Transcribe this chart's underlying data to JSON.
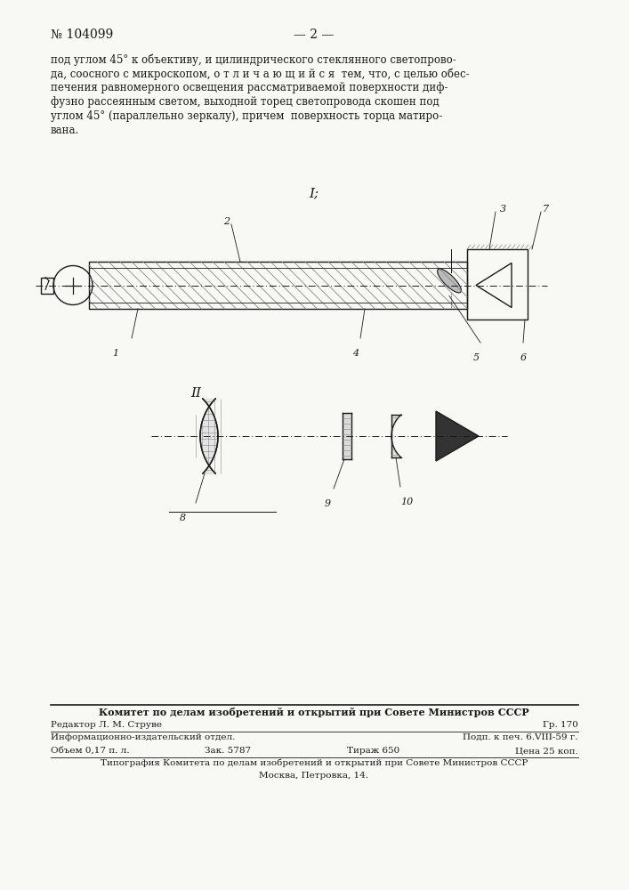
{
  "bg_color": "#f8f8f4",
  "patent_number": "№ 104099",
  "page_number": "— 2 —",
  "fig1_label": "I;",
  "fig2_label": "II",
  "body_lines": [
    "под углом 45° к объективу, и цилиндрического стеклянного светопрово-",
    "да, соосного с микроскопом, о т л и ч а ю щ и й с я  тем, что, с целью обес-",
    "печения равномерного освещения рассматриваемой поверхности диф-",
    "фузно рассеянным светом, выходной торец светопровода скошен под",
    "углом 45° (параллельно зеркалу), причем  поверхность торца матиро-",
    "вана."
  ],
  "footer_committee": "Комитет по делам изобретений и открытий при Совете Министров СССР",
  "footer_editor": "Редактор Л. М. Струве",
  "footer_gr": "Гр. 170",
  "footer_info": "Информационно-издательский отдел.",
  "footer_podp": "Подп. к печ. 6.VIII-59 г.",
  "footer_obem": "Объем 0,17 п. л.",
  "footer_zak": "Зак. 5787",
  "footer_tirazh": "Тираж 650",
  "footer_cena": "Цена 25 коп.",
  "footer_tipografia": "Типография Комитета по делам изобретений и открытий при Совете Министров СССР",
  "footer_moskva": "Москва, Петровка, 14.",
  "lc": "#1a1a1a",
  "hc": "#888888"
}
